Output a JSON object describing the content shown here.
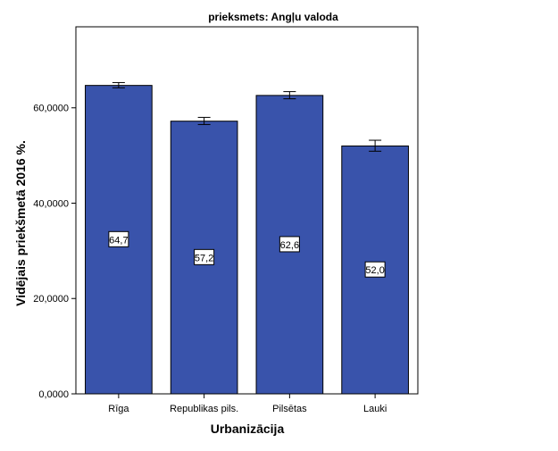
{
  "chart_data": {
    "type": "bar",
    "title": "prieksmets: Angļu valoda",
    "xlabel": "Urbanizācija",
    "ylabel": "Vidējais priekšmetā 2016 %.",
    "categories": [
      "Rīga",
      "Republikas pils.",
      "Pilsētas",
      "Lauki"
    ],
    "values": [
      64.7,
      57.2,
      62.6,
      52.0
    ],
    "value_labels": [
      "64,7",
      "57,2",
      "62,6",
      "52,0"
    ],
    "error_low": [
      64.2,
      56.5,
      61.9,
      50.9
    ],
    "error_high": [
      65.3,
      58.0,
      63.4,
      53.2
    ],
    "yticks": [
      0,
      20,
      40,
      60
    ],
    "ytick_labels": [
      "0,0000",
      "20,0000",
      "40,0000",
      "60,0000"
    ],
    "ylim": [
      0,
      77
    ],
    "grid": false,
    "bar_color": "#3953ab",
    "frame_color": "#000000",
    "background_color": "#ffffff"
  }
}
